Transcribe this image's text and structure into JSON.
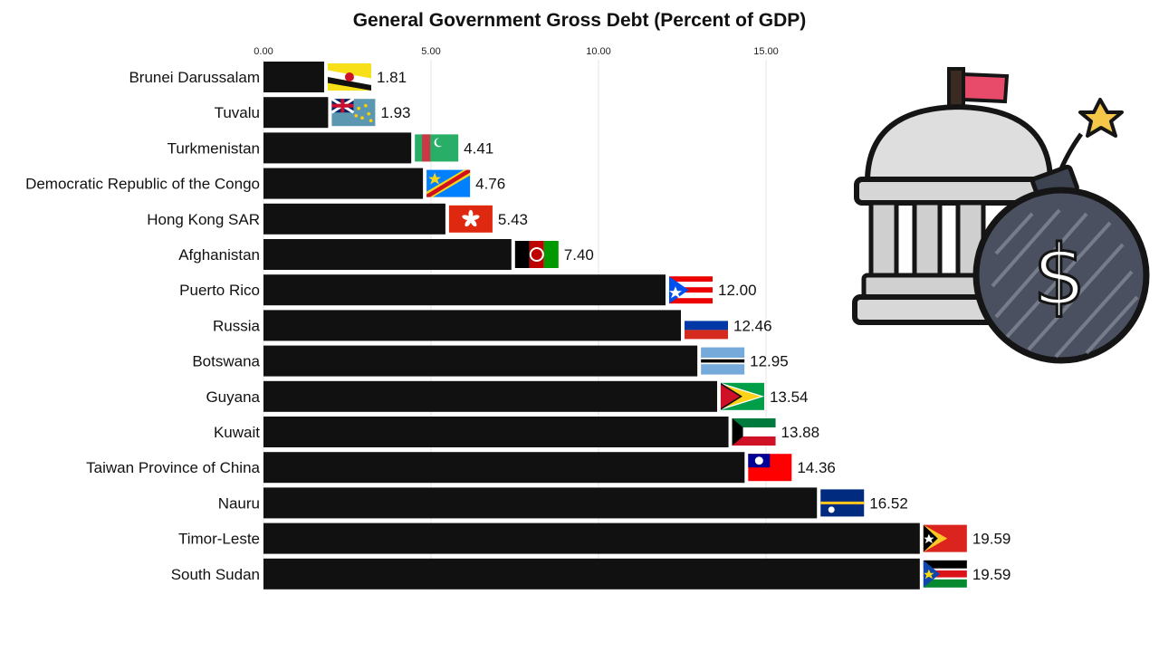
{
  "chart_data": {
    "type": "bar",
    "orientation": "horizontal",
    "title": "General Government Gross Debt (Percent of GDP)",
    "xlabel": "",
    "ylabel": "",
    "xlim": [
      0,
      20
    ],
    "x_ticks": [
      "0.00",
      "5.00",
      "10.00",
      "15.00"
    ],
    "tick_axis_position": "top",
    "grid": true,
    "bar_color": "#111111",
    "categories": [
      "Brunei Darussalam",
      "Tuvalu",
      "Turkmenistan",
      "Democratic Republic of the Congo",
      "Hong Kong SAR",
      "Afghanistan",
      "Puerto Rico",
      "Russia",
      "Botswana",
      "Guyana",
      "Kuwait",
      "Taiwan Province of China",
      "Nauru",
      "Timor-Leste",
      "South Sudan"
    ],
    "values": [
      1.81,
      1.93,
      4.41,
      4.76,
      5.43,
      7.4,
      12.0,
      12.46,
      12.95,
      13.54,
      13.88,
      14.36,
      16.52,
      19.59,
      19.59
    ],
    "value_labels": [
      "1.81",
      "1.93",
      "4.41",
      "4.76",
      "5.43",
      "7.40",
      "12.00",
      "12.46",
      "12.95",
      "13.54",
      "13.88",
      "14.36",
      "16.52",
      "19.59",
      "19.59"
    ],
    "flags": [
      "flag-bn",
      "flag-tv",
      "flag-tm",
      "flag-cd",
      "flag-hk",
      "flag-af",
      "flag-pr",
      "flag-ru",
      "flag-bw",
      "flag-gy",
      "flag-kw",
      "flag-tw",
      "flag-nr",
      "flag-tl",
      "flag-ss"
    ]
  },
  "illustration": {
    "icon": "government-building-debt-bomb-icon",
    "colors": {
      "outline": "#151515",
      "dome": "#dcdcdc",
      "bomb": "#4a5060",
      "flag": "#e84a6a",
      "spark": "#f5c84a"
    }
  }
}
